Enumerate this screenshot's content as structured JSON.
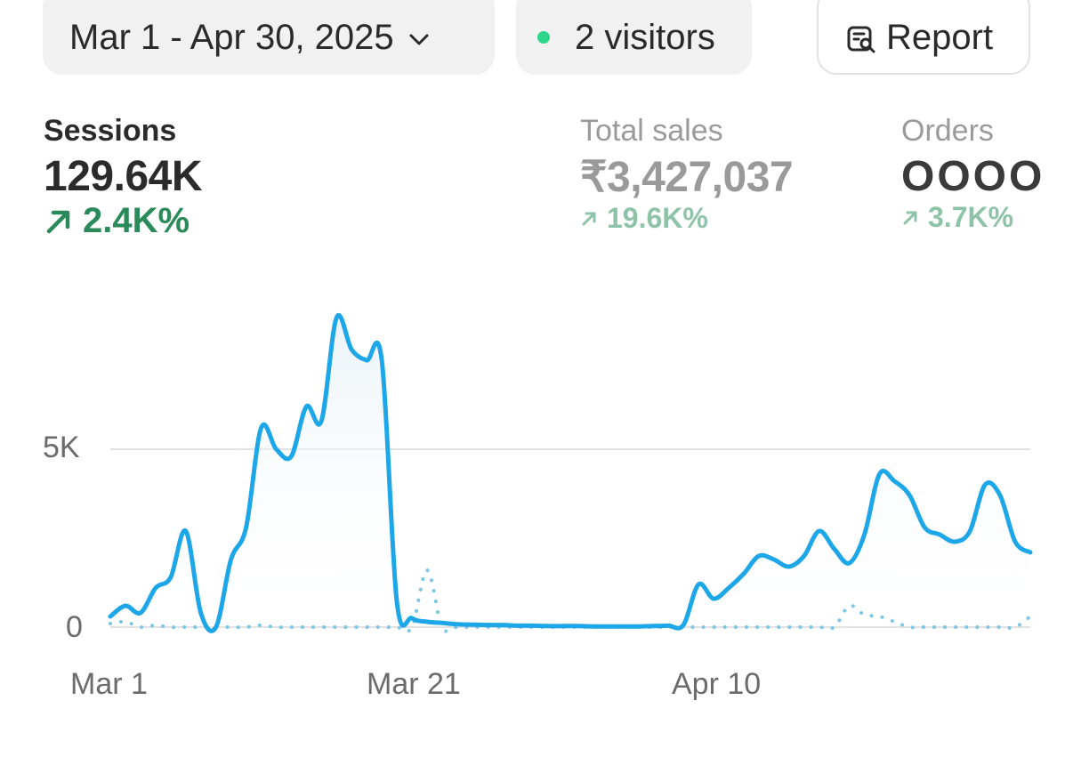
{
  "header": {
    "date_range": "Mar 1 - Apr 30, 2025",
    "visitors": "2 visitors",
    "report_label": "Report",
    "visitor_dot_color": "#2fd68a"
  },
  "metrics": {
    "sessions": {
      "label": "Sessions",
      "value": "129.64K",
      "change": "2.4K%"
    },
    "total_sales": {
      "label": "Total sales",
      "value": "₹3,427,037",
      "change": "19.6K%"
    },
    "orders": {
      "label": "Orders",
      "value": "OOOO",
      "change": "3.7K%"
    }
  },
  "colors": {
    "primary_line": "#1ea7e8",
    "comparison_line": "#7cc6e6",
    "positive_change": "#2a8a5a",
    "gridline": "#e1e1e1"
  },
  "chart_data": {
    "type": "line",
    "x_tick_labels": [
      "Mar 1",
      "Mar 21",
      "Apr 10"
    ],
    "y_tick_labels": [
      "0",
      "5K"
    ],
    "ylim": [
      0,
      9000
    ],
    "grid": true,
    "series": [
      {
        "style": "solid",
        "values": [
          300,
          600,
          400,
          1100,
          1400,
          2700,
          400,
          0,
          1900,
          2800,
          5600,
          5000,
          4800,
          6200,
          5800,
          8700,
          7800,
          7500,
          7500,
          700,
          250,
          150,
          120,
          80,
          70,
          60,
          60,
          40,
          40,
          30,
          30,
          30,
          20,
          20,
          20,
          20,
          30,
          40,
          60,
          1200,
          800,
          1100,
          1500,
          2000,
          1900,
          1700,
          2000,
          2700,
          2200,
          1800,
          2600,
          4300,
          4100,
          3700,
          2800,
          2600,
          2400,
          2700,
          4000,
          3700,
          2400,
          2100
        ]
      },
      {
        "style": "dotted",
        "values": [
          100,
          150,
          0,
          50,
          0,
          0,
          0,
          0,
          0,
          0,
          50,
          0,
          0,
          0,
          0,
          0,
          0,
          0,
          0,
          0,
          0,
          1600,
          0,
          0,
          0,
          0,
          0,
          0,
          0,
          0,
          0,
          0,
          0,
          0,
          0,
          0,
          0,
          0,
          0,
          0,
          0,
          0,
          0,
          0,
          0,
          0,
          0,
          0,
          0,
          600,
          350,
          300,
          150,
          0,
          0,
          0,
          0,
          0,
          0,
          0,
          0,
          300
        ]
      }
    ]
  }
}
